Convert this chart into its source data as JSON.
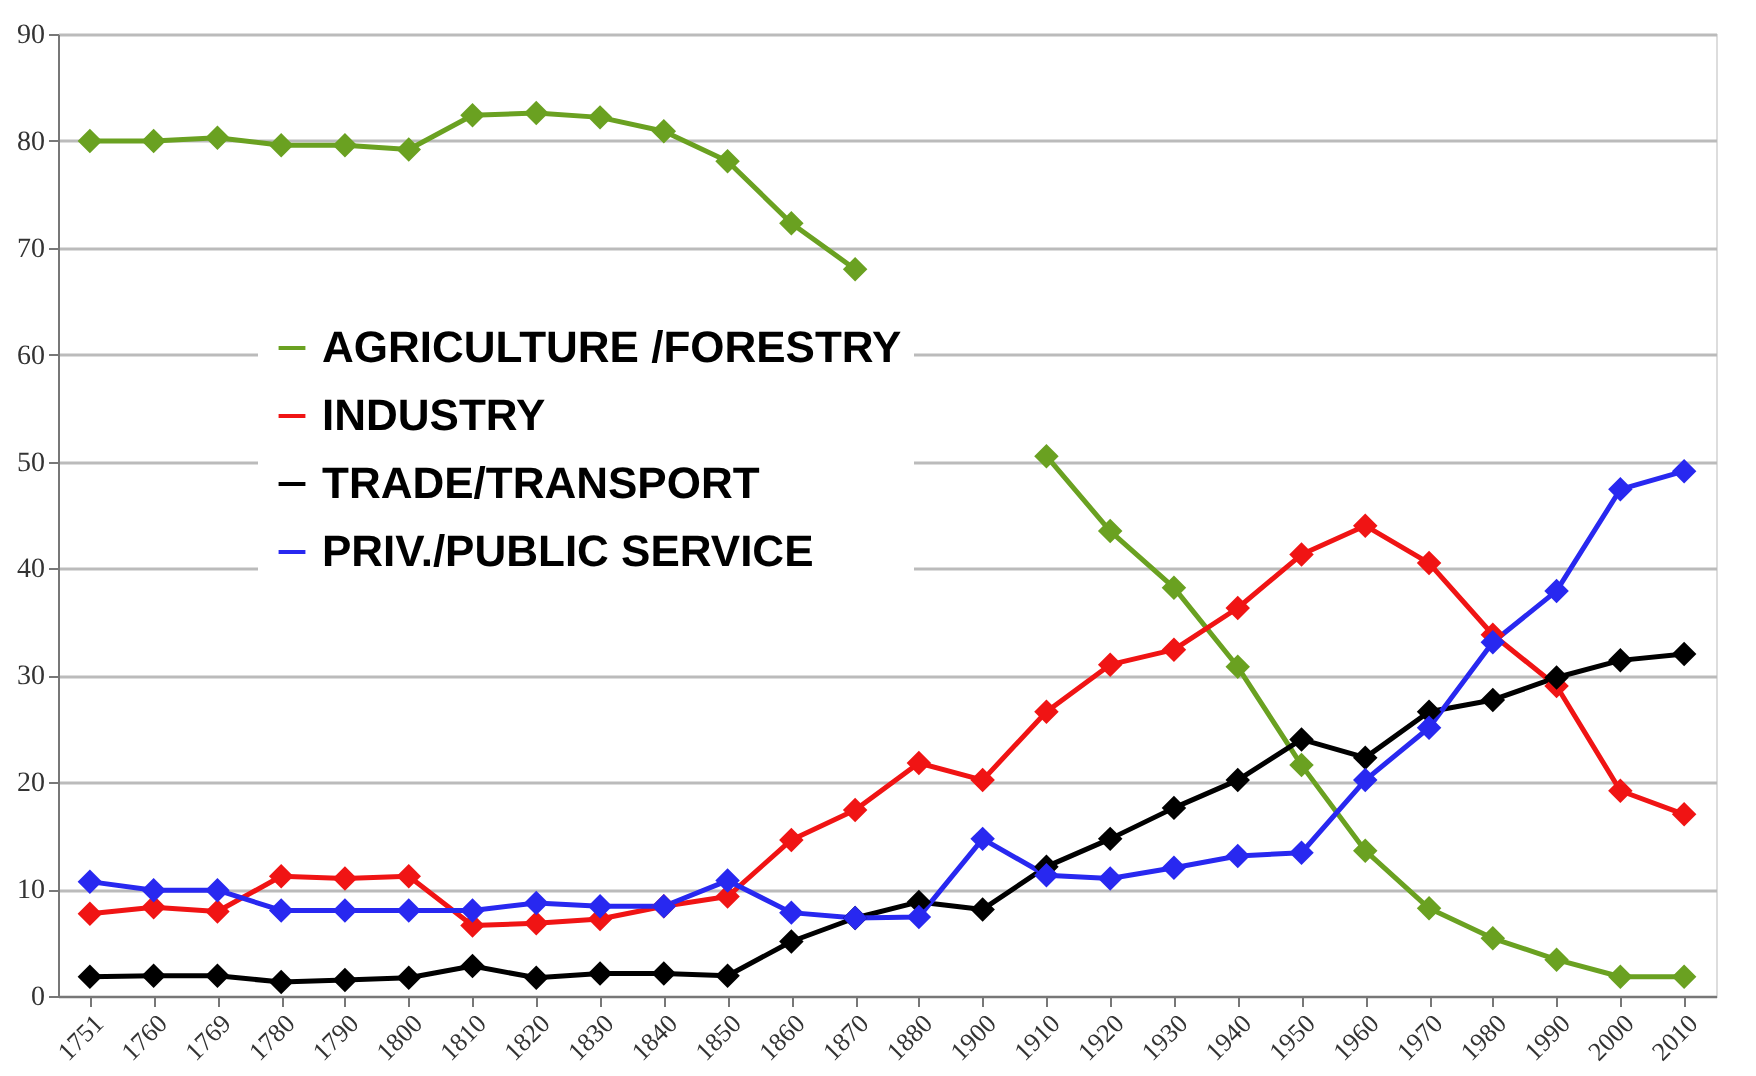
{
  "chart_data": {
    "type": "line",
    "categories": [
      "1751",
      "1760",
      "1769",
      "1780",
      "1790",
      "1800",
      "1810",
      "1820",
      "1830",
      "1840",
      "1850",
      "1860",
      "1870",
      "1880",
      "1900",
      "1910",
      "1920",
      "1930",
      "1940",
      "1950",
      "1960",
      "1970",
      "1980",
      "1990",
      "2000",
      "2010"
    ],
    "series": [
      {
        "name": "AGRICULTURE /FORESTRY",
        "color": "#6aa121",
        "values": [
          80,
          80,
          80.3,
          79.6,
          79.6,
          79.2,
          82.4,
          82.6,
          82.2,
          80.9,
          78.1,
          72.3,
          68,
          null,
          null,
          50.5,
          43.5,
          38.2,
          30.8,
          21.6,
          13.6,
          8.2,
          5.4,
          3.4,
          1.8,
          1.8
        ]
      },
      {
        "name": "INDUSTRY",
        "color": "#f01414",
        "values": [
          7.7,
          8.3,
          7.9,
          11.2,
          11,
          11.2,
          6.6,
          6.8,
          7.2,
          8.4,
          9.3,
          14.6,
          17.4,
          21.8,
          20.2,
          26.6,
          31,
          32.4,
          36.3,
          41.3,
          44,
          40.5,
          33.8,
          29,
          19.2,
          17
        ]
      },
      {
        "name": "TRADE/TRANSPORT",
        "color": "#000000",
        "values": [
          1.8,
          1.9,
          1.9,
          1.3,
          1.5,
          1.7,
          2.8,
          1.7,
          2.1,
          2.1,
          1.9,
          5.1,
          7.3,
          8.8,
          8.1,
          12.1,
          14.7,
          17.6,
          20.2,
          24,
          22.3,
          26.6,
          27.7,
          29.8,
          31.4,
          32
        ]
      },
      {
        "name": "PRIV./PUBLIC SERVICE",
        "color": "#2828f0",
        "values": [
          10.7,
          9.9,
          9.9,
          8,
          8,
          8,
          8,
          8.7,
          8.4,
          8.4,
          10.8,
          7.8,
          7.3,
          7.4,
          14.7,
          11.3,
          11,
          12,
          13.1,
          13.4,
          20.2,
          25.1,
          33.1,
          37.9,
          47.4,
          49.1
        ]
      }
    ],
    "ylim": [
      0,
      90
    ],
    "yticks": [
      0,
      10,
      20,
      30,
      40,
      50,
      60,
      70,
      80,
      90
    ],
    "grid": "y",
    "legend": "top left",
    "marker": "diamond",
    "line_style": "solid"
  }
}
